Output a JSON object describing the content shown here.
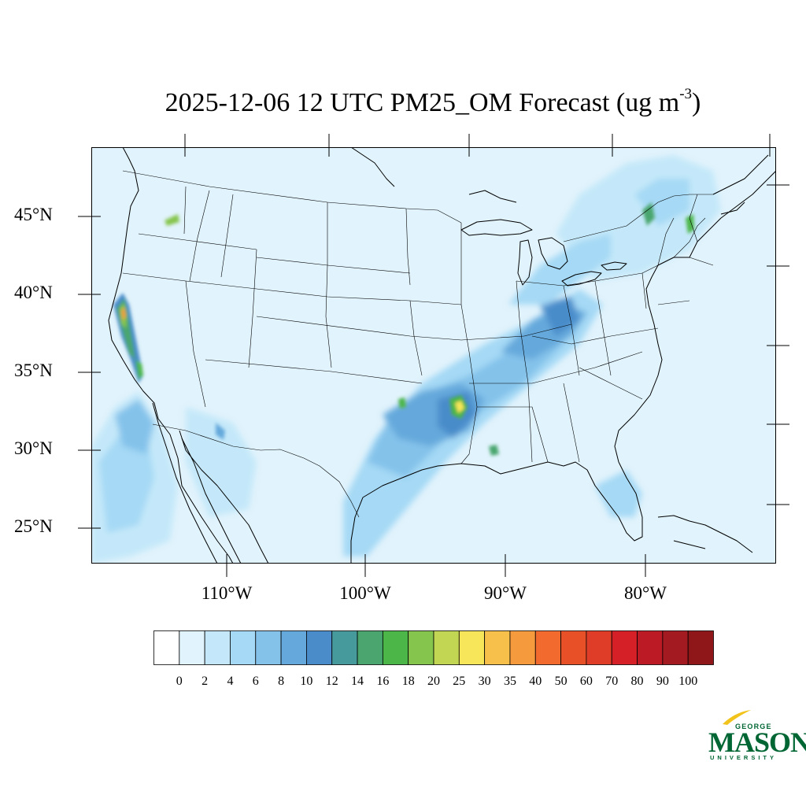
{
  "title": {
    "text": "2025-12-06 12 UTC PM25_OM Forecast (ug m",
    "superscript": "-3",
    "closing": ")"
  },
  "map": {
    "lat_labels": [
      "45°N",
      "40°N",
      "35°N",
      "30°N",
      "25°N"
    ],
    "lon_labels": [
      "110°W",
      "100°W",
      "90°W",
      "80°W"
    ]
  },
  "colorbar": {
    "labels": [
      "0",
      "2",
      "4",
      "6",
      "8",
      "10",
      "12",
      "14",
      "16",
      "18",
      "20",
      "25",
      "30",
      "35",
      "40",
      "50",
      "60",
      "70",
      "80",
      "90",
      "100"
    ],
    "colors": [
      "#ffffff",
      "#e1f3fc",
      "#c4e8f9",
      "#a5d9f5",
      "#84c2ea",
      "#65a9dc",
      "#4a8cca",
      "#479a9c",
      "#4aa66e",
      "#4cb648",
      "#86c54d",
      "#c3d653",
      "#f7e659",
      "#f7c04a",
      "#f59a3d",
      "#f26a2e",
      "#e85128",
      "#df3d27",
      "#d62027",
      "#bc1a25",
      "#a31a20",
      "#901719"
    ]
  },
  "logo": {
    "george": "GEORGE",
    "mason": "MASON",
    "university": "UNIVERSITY",
    "color": "#006633",
    "accent": "#f2c31b"
  }
}
